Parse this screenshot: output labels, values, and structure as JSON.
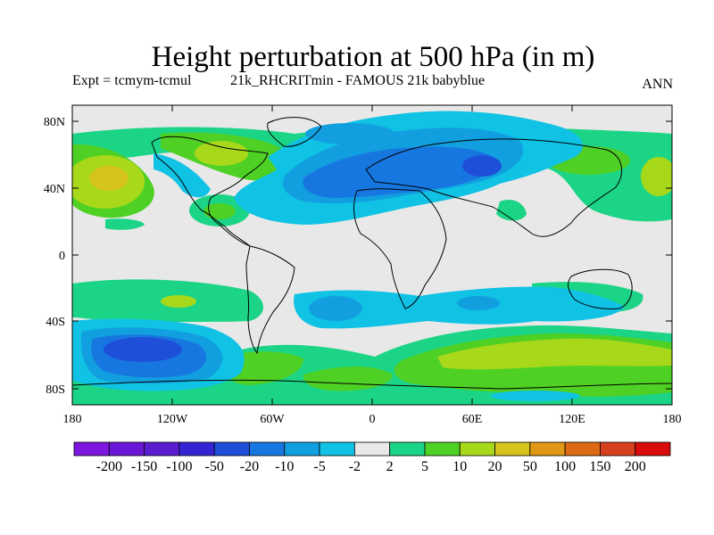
{
  "title": "Height perturbation at 500 hPa (in m)",
  "experiment": "Expt = tcmym-tcmul",
  "run": "21k_RHCRITmin - FAMOUS 21k babyblue",
  "season": "ANN",
  "map": {
    "lat_ticks": [
      "80N",
      "40N",
      "0",
      "40S",
      "80S"
    ],
    "lon_ticks": [
      "180",
      "120W",
      "60W",
      "0",
      "60E",
      "120E",
      "180"
    ]
  },
  "colorbar": {
    "labels": [
      "-200",
      "-150",
      "-100",
      "-50",
      "-20",
      "-10",
      "-5",
      "-2",
      "2",
      "5",
      "10",
      "20",
      "50",
      "100",
      "150",
      "200"
    ],
    "colors": [
      "#7d16df",
      "#6b18d6",
      "#5a1ccf",
      "#3524d3",
      "#1e4fd8",
      "#1777e0",
      "#129fe0",
      "#10c2e4",
      "#e8e8e8",
      "#1cd486",
      "#4fd024",
      "#a8d81a",
      "#d6c41c",
      "#df9816",
      "#dc6a14",
      "#d6401e",
      "#d80c0c"
    ]
  },
  "chart_data": {
    "type": "heatmap",
    "title": "Height perturbation at 500 hPa (in m)",
    "variable": "500 hPa height perturbation",
    "units": "m",
    "levels": [
      -200,
      -150,
      -100,
      -50,
      -20,
      -10,
      -5,
      -2,
      2,
      5,
      10,
      20,
      50,
      100,
      150,
      200
    ],
    "x_range": [
      -180,
      180
    ],
    "y_range": [
      -90,
      90
    ],
    "features": [
      {
        "region": "North Atlantic / Northern Europe",
        "range": "-10 to -20 (core -20 to -50)"
      },
      {
        "region": "Southeast Pacific (~55S, 130W)",
        "range": "-20 to -50"
      },
      {
        "region": "Southern Indian Ocean / Southern Ocean 40E-150E",
        "range": "5 to 20"
      },
      {
        "region": "North Pacific (~45N, 170W)",
        "range": "10 to 50"
      },
      {
        "region": "Northeast Pacific / Western Canada",
        "range": "5 to 20"
      }
    ]
  }
}
